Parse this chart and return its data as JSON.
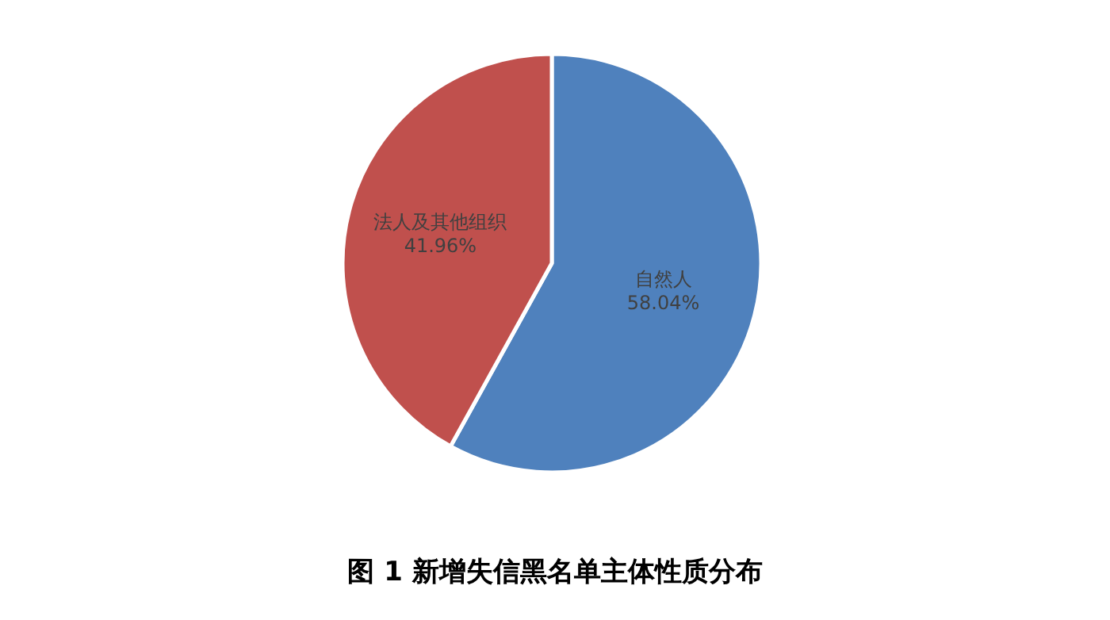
{
  "chart_data": {
    "type": "pie",
    "title": "图 1  新增失信黑名单主体性质分布",
    "categories": [
      "自然人",
      "法人及其他组织"
    ],
    "values": [
      58.04,
      41.96
    ],
    "colors": [
      "#4f81bd",
      "#c0504d"
    ],
    "value_labels": [
      "58.04%",
      "41.96%"
    ],
    "legend": false
  }
}
